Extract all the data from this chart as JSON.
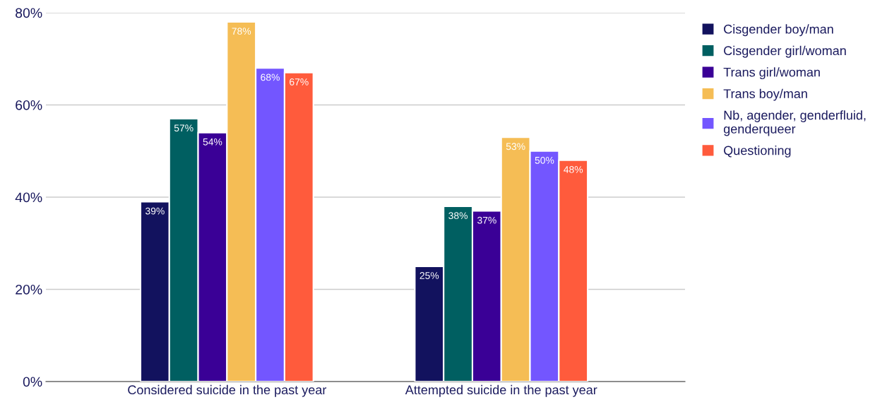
{
  "chart_data": {
    "type": "bar",
    "categories": [
      "Considered suicide in the past year",
      "Attempted suicide in the past year"
    ],
    "series": [
      {
        "name": "Cisgender boy/man",
        "color": "#12125e",
        "values": [
          39,
          25
        ],
        "value_labels": [
          "39%",
          "25%"
        ]
      },
      {
        "name": "Cisgender girl/woman",
        "color": "#005f61",
        "values": [
          57,
          38
        ],
        "value_labels": [
          "57%",
          "38%"
        ]
      },
      {
        "name": "Trans girl/woman",
        "color": "#3a0096",
        "values": [
          54,
          37
        ],
        "value_labels": [
          "54%",
          "37%"
        ]
      },
      {
        "name": "Trans boy/man",
        "color": "#f5bd55",
        "values": [
          78,
          53
        ],
        "value_labels": [
          "78%",
          "53%"
        ]
      },
      {
        "name": "Nb, agender, genderfluid,\ngenderqueer",
        "color": "#7356ff",
        "values": [
          68,
          50
        ],
        "value_labels": [
          "68%",
          "50%"
        ]
      },
      {
        "name": "Questioning",
        "color": "#ff5b3c",
        "values": [
          67,
          48
        ],
        "value_labels": [
          "67%",
          "48%"
        ]
      }
    ],
    "ylim": [
      0,
      80
    ],
    "yticks": [
      {
        "value": 0,
        "label": "0%"
      },
      {
        "value": 20,
        "label": "20%"
      },
      {
        "value": 40,
        "label": "40%"
      },
      {
        "value": 60,
        "label": "60%"
      },
      {
        "value": 80,
        "label": "80%"
      }
    ],
    "grid": "y",
    "legend": "right"
  }
}
